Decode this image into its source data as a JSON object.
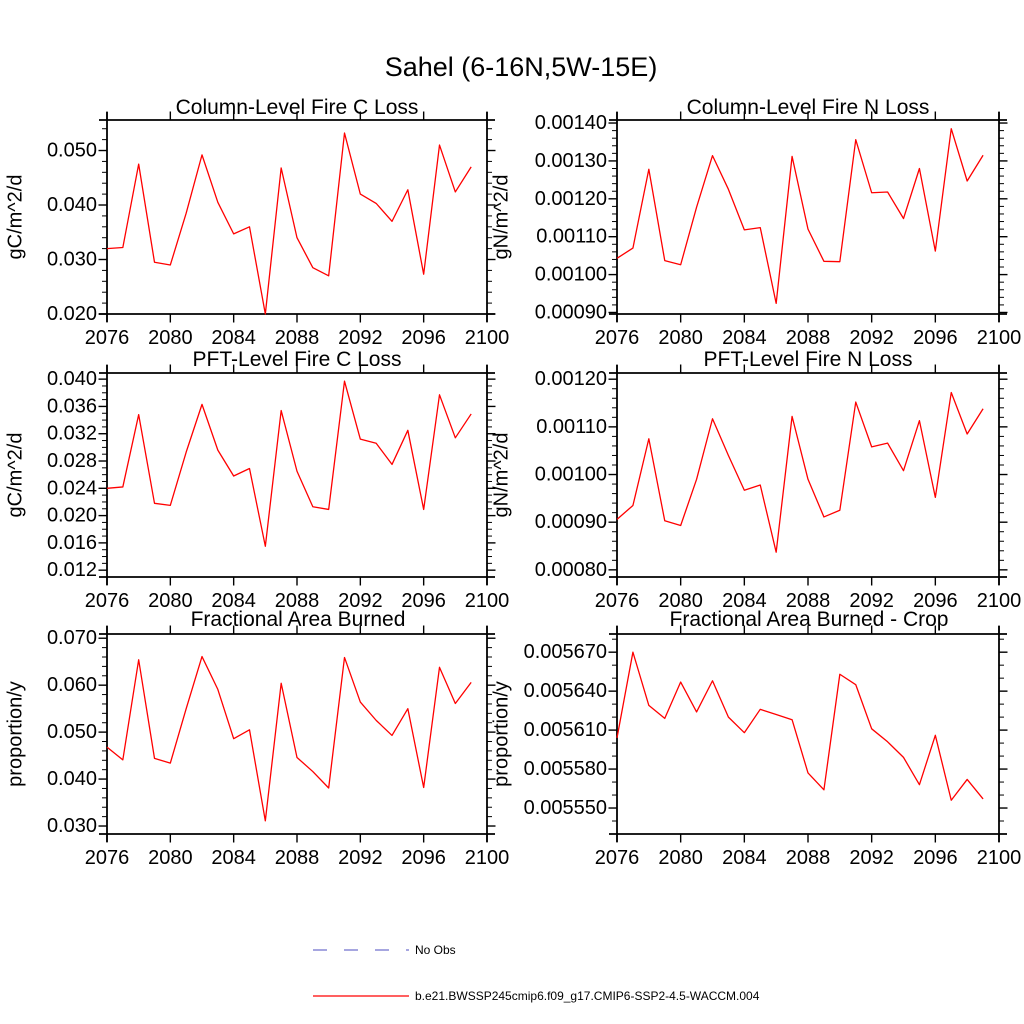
{
  "figure": {
    "title": "Sahel (6-16N,5W-15E)",
    "background": "#ffffff"
  },
  "legend": {
    "position": "bottom",
    "items": [
      {
        "label": "No Obs",
        "color": "#7272ce",
        "style": "dashed"
      },
      {
        "label": "b.e21.BWSSP245cmip6.f09_g17.CMIP6-SSP2-4.5-WACCM.004",
        "color": "#ff0000",
        "style": "solid"
      }
    ]
  },
  "chart_data": [
    {
      "type": "line",
      "id": "column-fire-c-loss",
      "title": "Column-Level Fire C Loss",
      "xlabel": "",
      "ylabel": "gC/m^2/d",
      "series_name": "b.e21.BWSSP245cmip6.f09_g17.CMIP6-SSP2-4.5-WACCM.004",
      "color": "#ff0000",
      "xlim": [
        2076,
        2100
      ],
      "ylim": [
        0.02,
        0.0556
      ],
      "xticks": [
        2076,
        2080,
        2084,
        2088,
        2092,
        2096,
        2100
      ],
      "xtick_labels": [
        "2076",
        "2080",
        "2084",
        "2088",
        "2092",
        "2096",
        "2100"
      ],
      "yticks": [
        0.02,
        0.03,
        0.04,
        0.05
      ],
      "ytick_labels": [
        "0.020",
        "0.030",
        "0.040",
        "0.050"
      ],
      "yminor_step": 0.002,
      "grid": false,
      "x": [
        2076,
        2077,
        2078,
        2079,
        2080,
        2081,
        2082,
        2083,
        2084,
        2085,
        2086,
        2087,
        2088,
        2089,
        2090,
        2091,
        2092,
        2093,
        2094,
        2095,
        2096,
        2097,
        2098,
        2099
      ],
      "values": [
        0.032,
        0.0322,
        0.0475,
        0.0295,
        0.029,
        0.0385,
        0.0492,
        0.0405,
        0.0347,
        0.036,
        0.02,
        0.0468,
        0.034,
        0.0285,
        0.027,
        0.0532,
        0.042,
        0.0403,
        0.037,
        0.0428,
        0.0273,
        0.051,
        0.0424,
        0.047
      ]
    },
    {
      "type": "line",
      "id": "column-fire-n-loss",
      "title": "Column-Level Fire N Loss",
      "xlabel": "",
      "ylabel": "gN/m^2/d",
      "series_name": "b.e21.BWSSP245cmip6.f09_g17.CMIP6-SSP2-4.5-WACCM.004",
      "color": "#ff0000",
      "xlim": [
        2076,
        2100
      ],
      "ylim": [
        0.000896,
        0.001408
      ],
      "xticks": [
        2076,
        2080,
        2084,
        2088,
        2092,
        2096,
        2100
      ],
      "xtick_labels": [
        "2076",
        "2080",
        "2084",
        "2088",
        "2092",
        "2096",
        "2100"
      ],
      "yticks": [
        0.0009,
        0.001,
        0.0011,
        0.0012,
        0.0013,
        0.0014
      ],
      "ytick_labels": [
        "0.00090",
        "0.00100",
        "0.00110",
        "0.00120",
        "0.00130",
        "0.00140"
      ],
      "yminor_step": 2e-05,
      "grid": false,
      "x": [
        2076,
        2077,
        2078,
        2079,
        2080,
        2081,
        2082,
        2083,
        2084,
        2085,
        2086,
        2087,
        2088,
        2089,
        2090,
        2091,
        2092,
        2093,
        2094,
        2095,
        2096,
        2097,
        2098,
        2099
      ],
      "values": [
        0.001043,
        0.00107,
        0.001278,
        0.001037,
        0.001026,
        0.001178,
        0.001314,
        0.001225,
        0.001118,
        0.001124,
        0.000924,
        0.001312,
        0.00112,
        0.001035,
        0.001034,
        0.001356,
        0.001216,
        0.001218,
        0.001148,
        0.00128,
        0.001062,
        0.001385,
        0.001247,
        0.001315
      ]
    },
    {
      "type": "line",
      "id": "pft-fire-c-loss",
      "title": "PFT-Level Fire C Loss",
      "xlabel": "",
      "ylabel": "gC/m^2/d",
      "series_name": "b.e21.BWSSP245cmip6.f09_g17.CMIP6-SSP2-4.5-WACCM.004",
      "color": "#ff0000",
      "xlim": [
        2076,
        2100
      ],
      "ylim": [
        0.011,
        0.0409
      ],
      "xticks": [
        2076,
        2080,
        2084,
        2088,
        2092,
        2096,
        2100
      ],
      "xtick_labels": [
        "2076",
        "2080",
        "2084",
        "2088",
        "2092",
        "2096",
        "2100"
      ],
      "yticks": [
        0.012,
        0.016,
        0.02,
        0.024,
        0.028,
        0.032,
        0.036,
        0.04
      ],
      "ytick_labels": [
        "0.012",
        "0.016",
        "0.020",
        "0.024",
        "0.028",
        "0.032",
        "0.036",
        "0.040"
      ],
      "yminor_step": 0.001,
      "grid": false,
      "x": [
        2076,
        2077,
        2078,
        2079,
        2080,
        2081,
        2082,
        2083,
        2084,
        2085,
        2086,
        2087,
        2088,
        2089,
        2090,
        2091,
        2092,
        2093,
        2094,
        2095,
        2096,
        2097,
        2098,
        2099
      ],
      "values": [
        0.024,
        0.0242,
        0.0348,
        0.0218,
        0.0215,
        0.0293,
        0.0363,
        0.0296,
        0.0258,
        0.0269,
        0.0155,
        0.0354,
        0.0265,
        0.0213,
        0.0209,
        0.0397,
        0.0312,
        0.0306,
        0.0275,
        0.0325,
        0.0209,
        0.0377,
        0.0314,
        0.0349
      ]
    },
    {
      "type": "line",
      "id": "pft-fire-n-loss",
      "title": "PFT-Level Fire N Loss",
      "xlabel": "",
      "ylabel": "gN/m^2/d",
      "series_name": "b.e21.BWSSP245cmip6.f09_g17.CMIP6-SSP2-4.5-WACCM.004",
      "color": "#ff0000",
      "xlim": [
        2076,
        2100
      ],
      "ylim": [
        0.000785,
        0.001213
      ],
      "xticks": [
        2076,
        2080,
        2084,
        2088,
        2092,
        2096,
        2100
      ],
      "xtick_labels": [
        "2076",
        "2080",
        "2084",
        "2088",
        "2092",
        "2096",
        "2100"
      ],
      "yticks": [
        0.0008,
        0.0009,
        0.001,
        0.0011,
        0.0012
      ],
      "ytick_labels": [
        "0.00080",
        "0.00090",
        "0.00100",
        "0.00110",
        "0.00120"
      ],
      "yminor_step": 2e-05,
      "grid": false,
      "x": [
        2076,
        2077,
        2078,
        2079,
        2080,
        2081,
        2082,
        2083,
        2084,
        2085,
        2086,
        2087,
        2088,
        2089,
        2090,
        2091,
        2092,
        2093,
        2094,
        2095,
        2096,
        2097,
        2098,
        2099
      ],
      "values": [
        0.000906,
        0.000935,
        0.001075,
        0.000903,
        0.000893,
        0.00099,
        0.001117,
        0.00104,
        0.000967,
        0.000978,
        0.000837,
        0.001122,
        0.00099,
        0.000911,
        0.000925,
        0.001152,
        0.001058,
        0.001066,
        0.001008,
        0.001113,
        0.000952,
        0.001172,
        0.001085,
        0.001138
      ]
    },
    {
      "type": "line",
      "id": "fractional-area-burned",
      "title": "Fractional Area Burned",
      "xlabel": "",
      "ylabel": "proportion/y",
      "series_name": "b.e21.BWSSP245cmip6.f09_g17.CMIP6-SSP2-4.5-WACCM.004",
      "color": "#ff0000",
      "xlim": [
        2076,
        2100
      ],
      "ylim": [
        0.0283,
        0.0709
      ],
      "xticks": [
        2076,
        2080,
        2084,
        2088,
        2092,
        2096,
        2100
      ],
      "xtick_labels": [
        "2076",
        "2080",
        "2084",
        "2088",
        "2092",
        "2096",
        "2100"
      ],
      "yticks": [
        0.03,
        0.04,
        0.05,
        0.06,
        0.07
      ],
      "ytick_labels": [
        "0.030",
        "0.040",
        "0.050",
        "0.060",
        "0.070"
      ],
      "yminor_step": 0.002,
      "grid": false,
      "x": [
        2076,
        2077,
        2078,
        2079,
        2080,
        2081,
        2082,
        2083,
        2084,
        2085,
        2086,
        2087,
        2088,
        2089,
        2090,
        2091,
        2092,
        2093,
        2094,
        2095,
        2096,
        2097,
        2098,
        2099
      ],
      "values": [
        0.0468,
        0.0441,
        0.0654,
        0.0444,
        0.0434,
        0.055,
        0.0661,
        0.0591,
        0.0486,
        0.0505,
        0.0311,
        0.0604,
        0.0446,
        0.0416,
        0.0381,
        0.0659,
        0.0564,
        0.0525,
        0.0493,
        0.055,
        0.0382,
        0.0638,
        0.0561,
        0.0606
      ]
    },
    {
      "type": "line",
      "id": "fractional-area-burned-crop",
      "title": "Fractional Area Burned - Crop",
      "xlabel": "",
      "ylabel": "proportion/y",
      "series_name": "b.e21.BWSSP245cmip6.f09_g17.CMIP6-SSP2-4.5-WACCM.004",
      "color": "#ff0000",
      "xlim": [
        2076,
        2100
      ],
      "ylim": [
        0.00553,
        0.005684
      ],
      "xticks": [
        2076,
        2080,
        2084,
        2088,
        2092,
        2096,
        2100
      ],
      "xtick_labels": [
        "2076",
        "2080",
        "2084",
        "2088",
        "2092",
        "2096",
        "2100"
      ],
      "yticks": [
        0.00555,
        0.00558,
        0.00561,
        0.00564,
        0.00567
      ],
      "ytick_labels": [
        "0.005550",
        "0.005580",
        "0.005610",
        "0.005640",
        "0.005670"
      ],
      "yminor_step": 1e-05,
      "grid": false,
      "x": [
        2076,
        2077,
        2078,
        2079,
        2080,
        2081,
        2082,
        2083,
        2084,
        2085,
        2086,
        2087,
        2088,
        2089,
        2090,
        2091,
        2092,
        2093,
        2094,
        2095,
        2096,
        2097,
        2098,
        2099
      ],
      "values": [
        0.005604,
        0.00567,
        0.005629,
        0.005619,
        0.005647,
        0.005624,
        0.005648,
        0.00562,
        0.005608,
        0.005626,
        0.005622,
        0.005618,
        0.005577,
        0.005564,
        0.005653,
        0.005645,
        0.005611,
        0.005601,
        0.005589,
        0.005568,
        0.005606,
        0.005556,
        0.005572,
        0.005557
      ]
    }
  ]
}
